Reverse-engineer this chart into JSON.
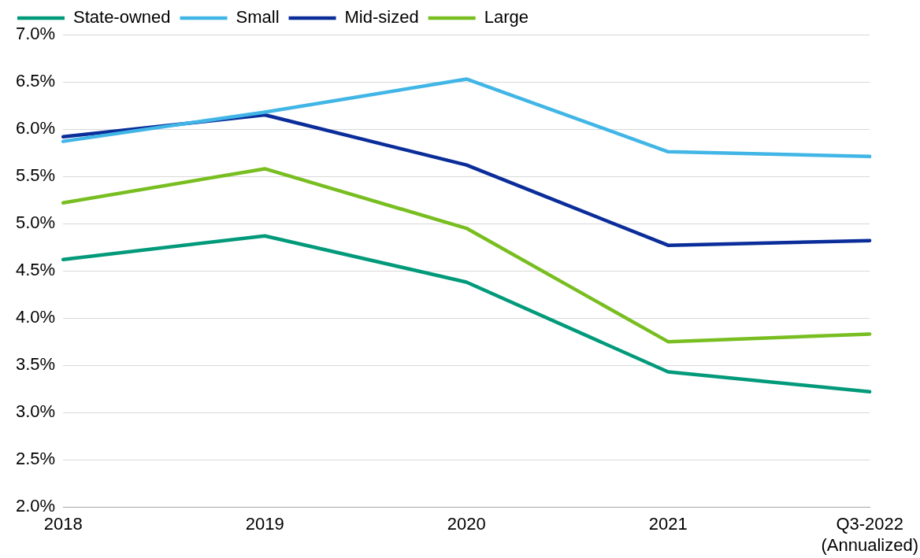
{
  "chart_data": {
    "type": "line",
    "categories": [
      "2018",
      "2019",
      "2020",
      "2021",
      "Q3-2022\n(Annualized)"
    ],
    "series": [
      {
        "name": "State-owned",
        "color": "#009a7a",
        "values": [
          4.62,
          4.87,
          4.38,
          3.43,
          3.22
        ]
      },
      {
        "name": "Small",
        "color": "#41b6e6",
        "values": [
          5.87,
          6.18,
          6.53,
          5.76,
          5.71
        ]
      },
      {
        "name": "Mid-sized",
        "color": "#0a2d9a",
        "values": [
          5.92,
          6.15,
          5.62,
          4.77,
          4.82
        ]
      },
      {
        "name": "Large",
        "color": "#78be20",
        "values": [
          5.22,
          5.58,
          4.95,
          3.75,
          3.83
        ]
      }
    ],
    "ylim": [
      2.0,
      7.0
    ],
    "yticks": [
      {
        "value": 2.0,
        "label": "2.0%"
      },
      {
        "value": 2.5,
        "label": "2.5%"
      },
      {
        "value": 3.0,
        "label": "3.0%"
      },
      {
        "value": 3.5,
        "label": "3.5%"
      },
      {
        "value": 4.0,
        "label": "4.0%"
      },
      {
        "value": 4.5,
        "label": "4.5%"
      },
      {
        "value": 5.0,
        "label": "5.0%"
      },
      {
        "value": 5.5,
        "label": "5.5%"
      },
      {
        "value": 6.0,
        "label": "6.0%"
      },
      {
        "value": 6.5,
        "label": "6.5%"
      },
      {
        "value": 7.0,
        "label": "7.0%"
      }
    ],
    "grid": "y",
    "legend": "top",
    "marker": "none",
    "line_style": "solid"
  }
}
